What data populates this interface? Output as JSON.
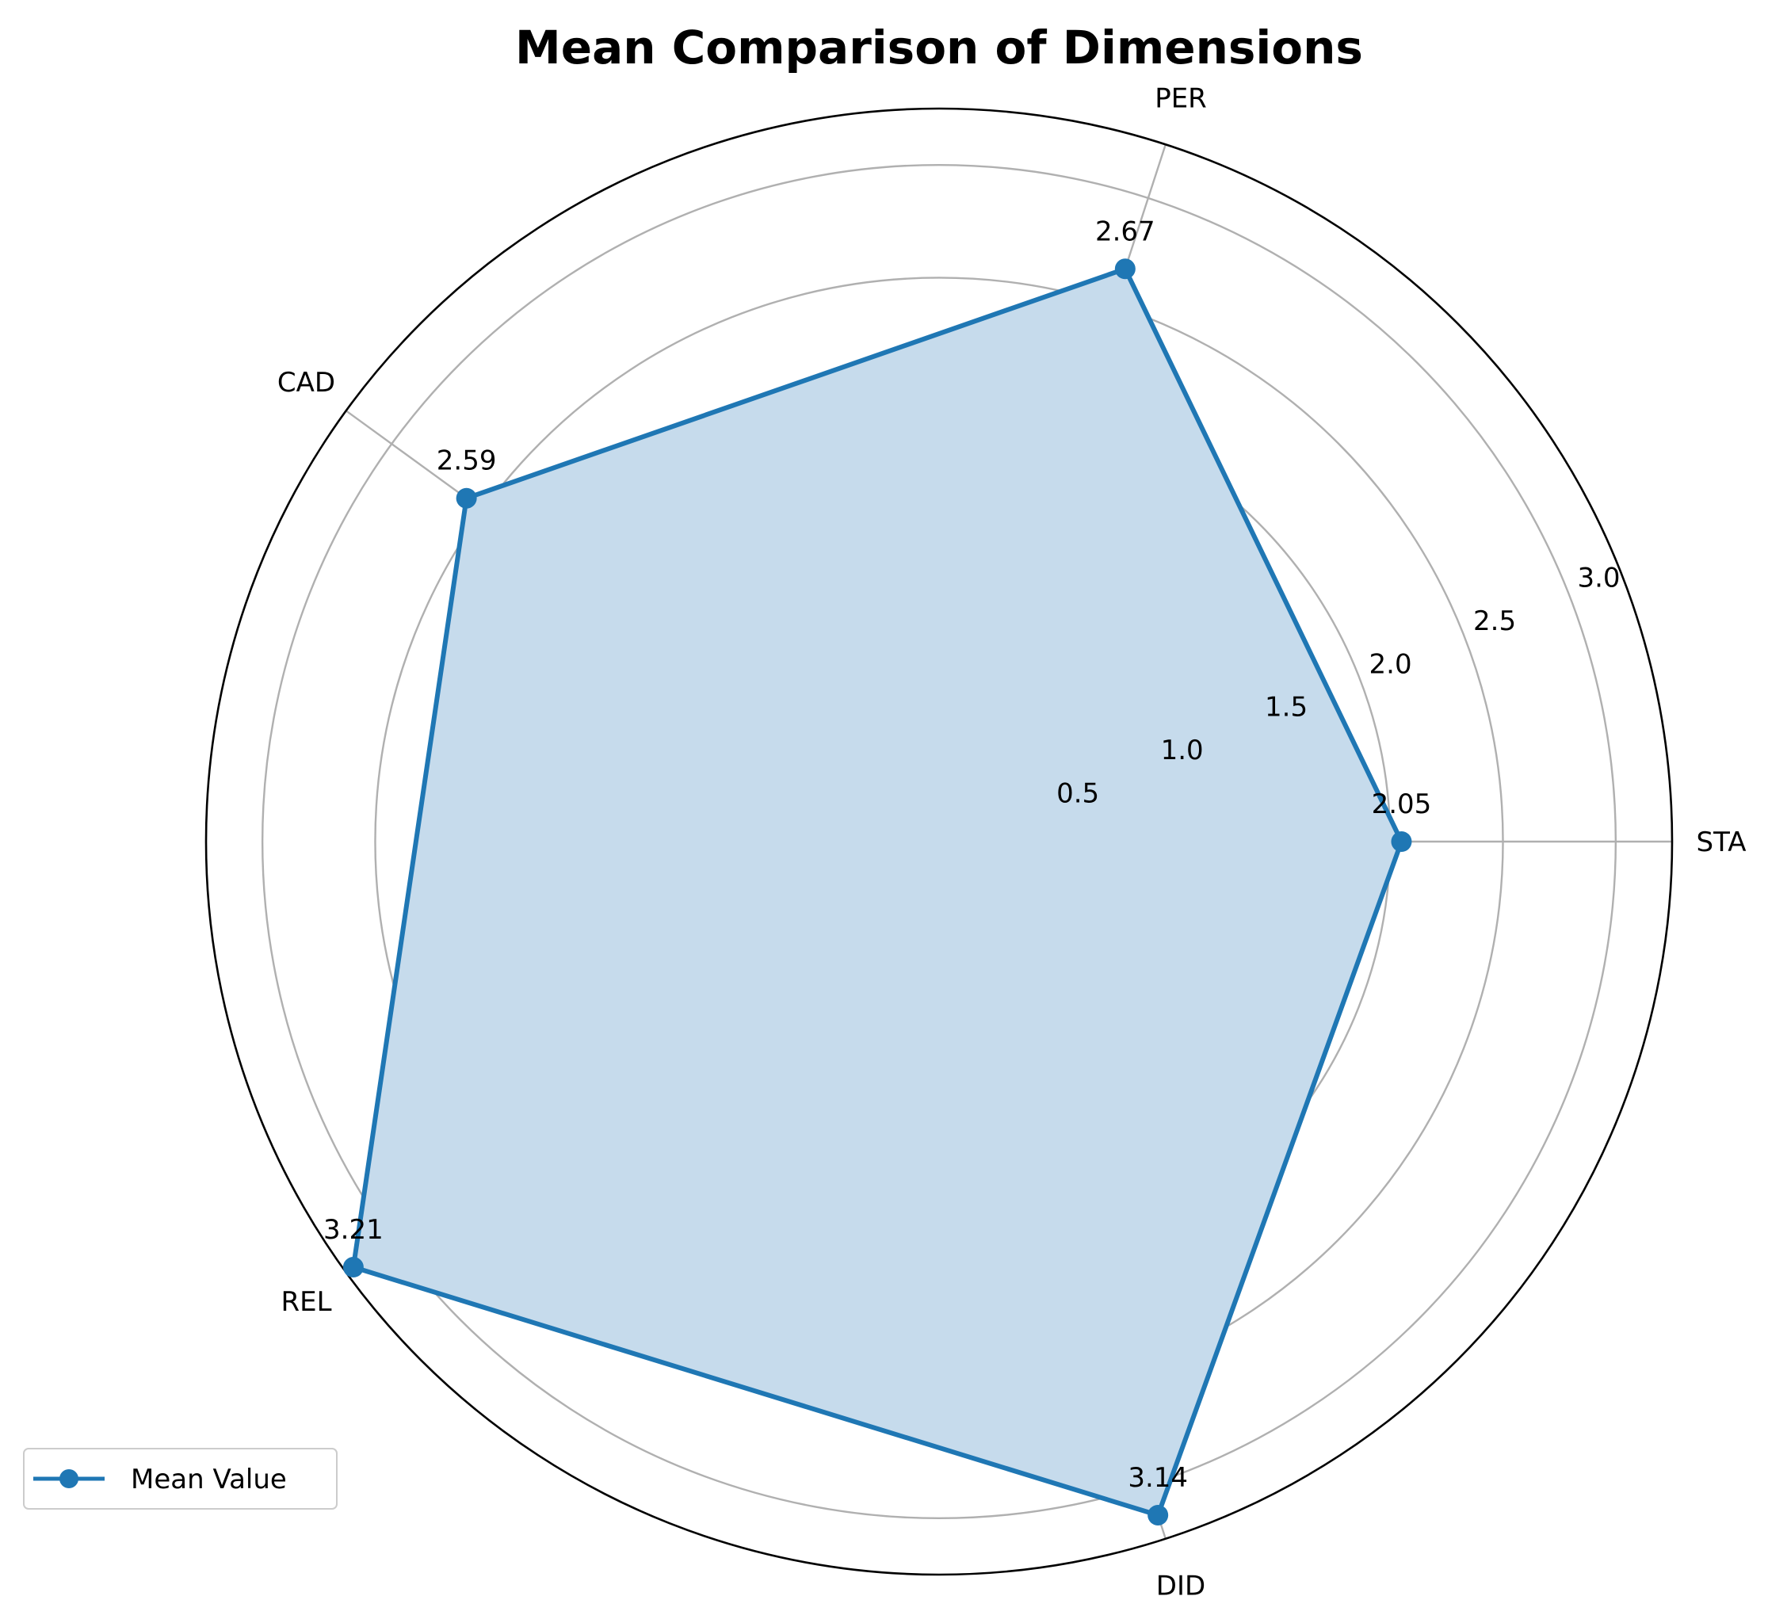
{
  "chart_data": {
    "type": "radar",
    "title": "Mean Comparison of Dimensions",
    "categories": [
      "STA",
      "PER",
      "CAD",
      "REL",
      "DID"
    ],
    "series": [
      {
        "name": "Mean Value",
        "values": [
          2.05,
          2.67,
          2.59,
          3.21,
          3.14
        ],
        "color": "#1f77b4"
      }
    ],
    "value_labels": [
      "2.05",
      "2.67",
      "2.59",
      "3.21",
      "3.14"
    ],
    "r_ticks": [
      0.5,
      1.0,
      1.5,
      2.0,
      2.5,
      3.0
    ],
    "r_tick_labels": [
      "0.5",
      "1.0",
      "1.5",
      "2.0",
      "2.5",
      "3.0"
    ],
    "rlim": [
      0,
      3.25
    ],
    "grid": true,
    "legend_position": "lower-left"
  },
  "colors": {
    "line": "#1f77b4",
    "fill": "#c6dbec",
    "grid": "#b0b0b0",
    "frame": "#000000"
  }
}
